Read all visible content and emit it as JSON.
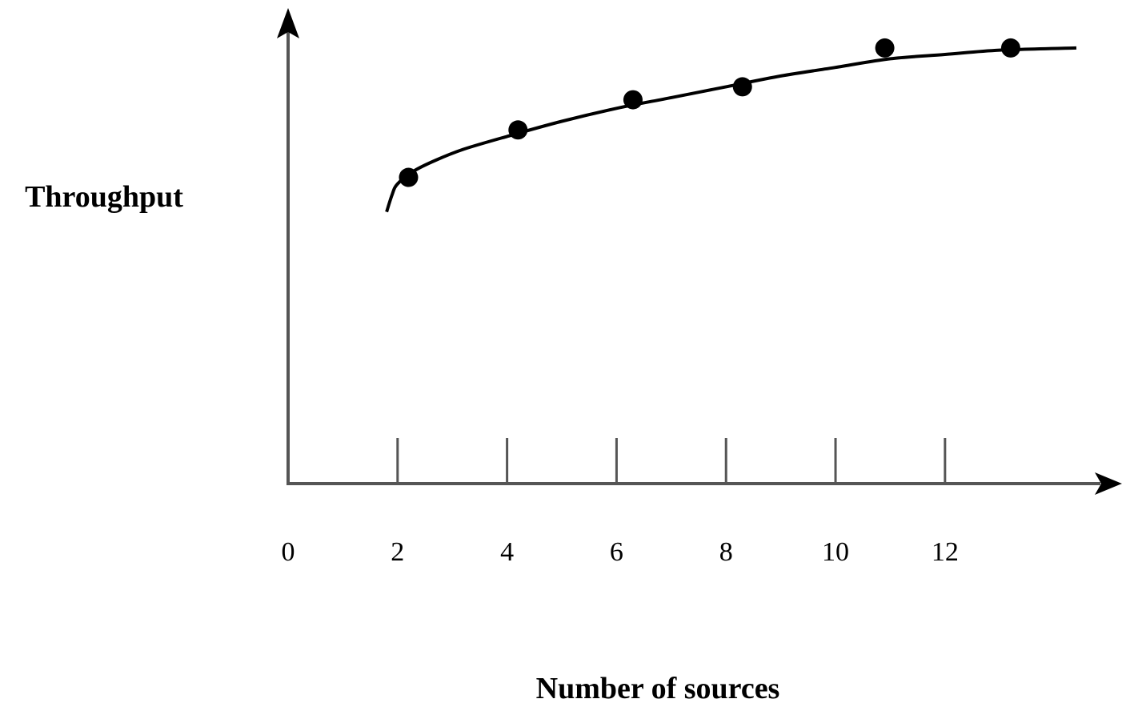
{
  "chart_data": {
    "type": "scatter",
    "title": "",
    "xlabel": "Number of sources",
    "ylabel": "Throughput",
    "x_ticks": [
      "0",
      "2",
      "4",
      "6",
      "8",
      "10",
      "12"
    ],
    "xlim": [
      0,
      14.4
    ],
    "ylim": [
      0,
      10.6
    ],
    "grid": false,
    "legend": "none",
    "series": [
      {
        "kind": "points",
        "x": [
          2.2,
          4.2,
          6.3,
          8.3,
          10.9,
          13.2
        ],
        "y": [
          7.1,
          8.2,
          8.9,
          9.2,
          10.1,
          10.1
        ]
      },
      {
        "kind": "fitted-curve",
        "x": [
          1.8,
          1.9,
          2.0,
          2.3,
          2.7,
          3.2,
          4.0,
          5.0,
          6.0,
          7.0,
          8.0,
          9.0,
          10.0,
          11.0,
          12.0,
          13.0,
          14.4
        ],
        "y": [
          6.3,
          6.7,
          6.95,
          7.25,
          7.5,
          7.75,
          8.05,
          8.4,
          8.7,
          8.95,
          9.2,
          9.45,
          9.65,
          9.85,
          9.95,
          10.05,
          10.1
        ]
      }
    ],
    "colors": {
      "axis": "#555555",
      "marks": "#000000"
    }
  }
}
